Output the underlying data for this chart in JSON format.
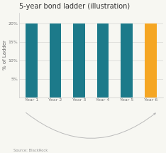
{
  "title": "5-year bond ladder (illustration)",
  "categories": [
    "Year 1",
    "Year 2",
    "Year 3",
    "Year 4",
    "Year 5",
    "Year 6"
  ],
  "values": [
    20,
    20,
    20,
    20,
    20,
    20
  ],
  "bar_colors": [
    "#1c7a8a",
    "#1c7a8a",
    "#1c7a8a",
    "#1c7a8a",
    "#1c7a8a",
    "#f5a623"
  ],
  "ylabel": "% of Ladder",
  "ylim": [
    0,
    23
  ],
  "yticks": [
    5,
    10,
    15,
    20
  ],
  "ytick_labels": [
    "5%",
    "10%",
    "15%",
    "20%"
  ],
  "title_fontsize": 7.0,
  "tick_fontsize": 4.5,
  "ylabel_fontsize": 5.0,
  "source_text": "Source: BlackRock",
  "background_color": "#f7f7f2",
  "arrow_color": "#bbbbbb",
  "bar_width": 0.5
}
